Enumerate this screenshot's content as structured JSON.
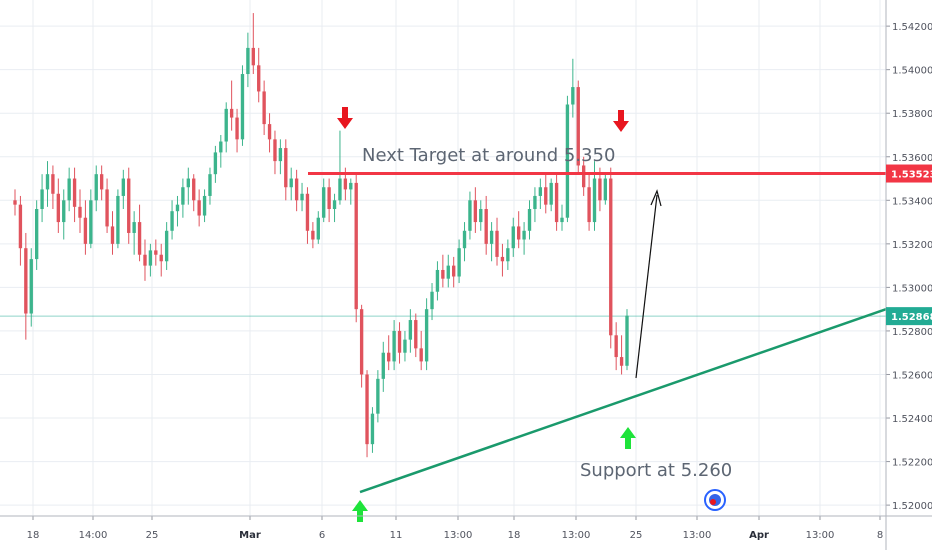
{
  "chart_data": {
    "type": "candlestick",
    "ylim": [
      1.5195,
      1.5432
    ],
    "y_ticks": [
      "1.54200",
      "1.54000",
      "1.53800",
      "1.53600",
      "1.53400",
      "1.53200",
      "1.53000",
      "1.52800",
      "1.52600",
      "1.52400",
      "1.52200",
      "1.52000"
    ],
    "x_ticks": [
      {
        "label": "18",
        "bold": false
      },
      {
        "label": "14:00",
        "bold": false
      },
      {
        "label": "25",
        "bold": false
      },
      {
        "label": "Mar",
        "bold": true
      },
      {
        "label": "6",
        "bold": false
      },
      {
        "label": "11",
        "bold": false
      },
      {
        "label": "13:00",
        "bold": false
      },
      {
        "label": "18",
        "bold": false
      },
      {
        "label": "13:00",
        "bold": false
      },
      {
        "label": "25",
        "bold": false
      },
      {
        "label": "13:00",
        "bold": false
      },
      {
        "label": "Apr",
        "bold": true
      },
      {
        "label": "13:00",
        "bold": false
      },
      {
        "label": "8",
        "bold": false
      }
    ],
    "candles": [
      [
        1.534,
        1.5345,
        1.5333,
        1.5338
      ],
      [
        1.5338,
        1.5342,
        1.531,
        1.5318
      ],
      [
        1.5318,
        1.5325,
        1.5276,
        1.5288
      ],
      [
        1.5288,
        1.5318,
        1.5282,
        1.5313
      ],
      [
        1.5313,
        1.534,
        1.5308,
        1.5336
      ],
      [
        1.5336,
        1.5352,
        1.533,
        1.5345
      ],
      [
        1.5345,
        1.5358,
        1.5337,
        1.5352
      ],
      [
        1.5352,
        1.5356,
        1.5336,
        1.5343
      ],
      [
        1.5343,
        1.535,
        1.5325,
        1.533
      ],
      [
        1.533,
        1.5345,
        1.5322,
        1.534
      ],
      [
        1.534,
        1.5355,
        1.5335,
        1.535
      ],
      [
        1.535,
        1.5355,
        1.533,
        1.5337
      ],
      [
        1.5337,
        1.5345,
        1.5325,
        1.5332
      ],
      [
        1.5332,
        1.534,
        1.5315,
        1.532
      ],
      [
        1.532,
        1.5345,
        1.5318,
        1.534
      ],
      [
        1.534,
        1.5356,
        1.5335,
        1.5352
      ],
      [
        1.5352,
        1.5356,
        1.534,
        1.5345
      ],
      [
        1.5345,
        1.535,
        1.5325,
        1.5328
      ],
      [
        1.5328,
        1.5335,
        1.5315,
        1.532
      ],
      [
        1.532,
        1.5345,
        1.5318,
        1.5342
      ],
      [
        1.5342,
        1.5354,
        1.5336,
        1.535
      ],
      [
        1.535,
        1.5355,
        1.532,
        1.5325
      ],
      [
        1.5325,
        1.5335,
        1.5315,
        1.533
      ],
      [
        1.533,
        1.5338,
        1.5312,
        1.5315
      ],
      [
        1.5315,
        1.5322,
        1.5303,
        1.531
      ],
      [
        1.531,
        1.532,
        1.5305,
        1.5317
      ],
      [
        1.5317,
        1.5322,
        1.531,
        1.5315
      ],
      [
        1.5315,
        1.532,
        1.5305,
        1.5312
      ],
      [
        1.5312,
        1.533,
        1.5308,
        1.5326
      ],
      [
        1.5326,
        1.534,
        1.5322,
        1.5335
      ],
      [
        1.5335,
        1.5342,
        1.5328,
        1.5338
      ],
      [
        1.5338,
        1.535,
        1.5332,
        1.5346
      ],
      [
        1.5346,
        1.5355,
        1.5338,
        1.535
      ],
      [
        1.535,
        1.5352,
        1.5335,
        1.534
      ],
      [
        1.534,
        1.5345,
        1.5328,
        1.5333
      ],
      [
        1.5333,
        1.5345,
        1.533,
        1.5342
      ],
      [
        1.5342,
        1.5355,
        1.5338,
        1.5352
      ],
      [
        1.5352,
        1.5365,
        1.5348,
        1.5362
      ],
      [
        1.5362,
        1.537,
        1.5355,
        1.5367
      ],
      [
        1.5367,
        1.5385,
        1.5362,
        1.5382
      ],
      [
        1.5382,
        1.5395,
        1.5372,
        1.5378
      ],
      [
        1.5378,
        1.5382,
        1.5362,
        1.5368
      ],
      [
        1.5368,
        1.5402,
        1.5365,
        1.5398
      ],
      [
        1.5398,
        1.5417,
        1.5392,
        1.541
      ],
      [
        1.541,
        1.5426,
        1.5398,
        1.5402
      ],
      [
        1.5402,
        1.541,
        1.5385,
        1.539
      ],
      [
        1.539,
        1.5395,
        1.537,
        1.5375
      ],
      [
        1.5375,
        1.538,
        1.5362,
        1.5368
      ],
      [
        1.5368,
        1.5372,
        1.5352,
        1.5358
      ],
      [
        1.5358,
        1.5368,
        1.5352,
        1.5364
      ],
      [
        1.5364,
        1.5368,
        1.534,
        1.5346
      ],
      [
        1.5346,
        1.5355,
        1.534,
        1.535
      ],
      [
        1.535,
        1.5354,
        1.5335,
        1.534
      ],
      [
        1.534,
        1.5348,
        1.5335,
        1.5343
      ],
      [
        1.5343,
        1.5346,
        1.532,
        1.5326
      ],
      [
        1.5326,
        1.533,
        1.5318,
        1.5322
      ],
      [
        1.5322,
        1.5335,
        1.532,
        1.5332
      ],
      [
        1.5332,
        1.535,
        1.533,
        1.5346
      ],
      [
        1.5346,
        1.535,
        1.533,
        1.5336
      ],
      [
        1.5336,
        1.5343,
        1.533,
        1.534
      ],
      [
        1.534,
        1.5372,
        1.5338,
        1.535
      ],
      [
        1.535,
        1.5355,
        1.534,
        1.5345
      ],
      [
        1.5345,
        1.535,
        1.5338,
        1.5348
      ],
      [
        1.5348,
        1.5352,
        1.5284,
        1.529
      ],
      [
        1.529,
        1.5292,
        1.5254,
        1.526
      ],
      [
        1.526,
        1.5262,
        1.5222,
        1.5228
      ],
      [
        1.5228,
        1.5245,
        1.5224,
        1.5242
      ],
      [
        1.5242,
        1.5262,
        1.5238,
        1.5258
      ],
      [
        1.5258,
        1.5275,
        1.5252,
        1.527
      ],
      [
        1.527,
        1.5278,
        1.5262,
        1.5266
      ],
      [
        1.5266,
        1.5285,
        1.5262,
        1.528
      ],
      [
        1.528,
        1.5284,
        1.5265,
        1.527
      ],
      [
        1.527,
        1.528,
        1.5266,
        1.5276
      ],
      [
        1.5276,
        1.529,
        1.527,
        1.5285
      ],
      [
        1.5285,
        1.5288,
        1.5268,
        1.5272
      ],
      [
        1.5272,
        1.528,
        1.5262,
        1.5266
      ],
      [
        1.5266,
        1.5295,
        1.5262,
        1.529
      ],
      [
        1.529,
        1.5302,
        1.5285,
        1.5298
      ],
      [
        1.5298,
        1.5312,
        1.5294,
        1.5308
      ],
      [
        1.5308,
        1.5315,
        1.53,
        1.5304
      ],
      [
        1.5304,
        1.5315,
        1.53,
        1.531
      ],
      [
        1.531,
        1.5314,
        1.53,
        1.5305
      ],
      [
        1.5305,
        1.5322,
        1.5302,
        1.5318
      ],
      [
        1.5318,
        1.533,
        1.5312,
        1.5326
      ],
      [
        1.5326,
        1.5344,
        1.5322,
        1.534
      ],
      [
        1.534,
        1.5346,
        1.5325,
        1.533
      ],
      [
        1.533,
        1.534,
        1.5326,
        1.5336
      ],
      [
        1.5336,
        1.5342,
        1.5315,
        1.532
      ],
      [
        1.532,
        1.533,
        1.5312,
        1.5326
      ],
      [
        1.5326,
        1.5332,
        1.531,
        1.5314
      ],
      [
        1.5314,
        1.532,
        1.5305,
        1.5312
      ],
      [
        1.5312,
        1.5322,
        1.5308,
        1.5318
      ],
      [
        1.5318,
        1.5332,
        1.5314,
        1.5328
      ],
      [
        1.5328,
        1.5335,
        1.5318,
        1.5322
      ],
      [
        1.5322,
        1.533,
        1.5315,
        1.5326
      ],
      [
        1.5326,
        1.534,
        1.5322,
        1.5336
      ],
      [
        1.5336,
        1.5346,
        1.533,
        1.5342
      ],
      [
        1.5342,
        1.535,
        1.5336,
        1.5346
      ],
      [
        1.5346,
        1.5352,
        1.5334,
        1.5338
      ],
      [
        1.5338,
        1.535,
        1.5335,
        1.5348
      ],
      [
        1.5348,
        1.5352,
        1.5326,
        1.533
      ],
      [
        1.533,
        1.5338,
        1.5326,
        1.5332
      ],
      [
        1.5332,
        1.5388,
        1.533,
        1.5384
      ],
      [
        1.5384,
        1.5405,
        1.5378,
        1.5392
      ],
      [
        1.5392,
        1.5395,
        1.5352,
        1.5356
      ],
      [
        1.5356,
        1.536,
        1.5342,
        1.5346
      ],
      [
        1.5346,
        1.5352,
        1.5326,
        1.533
      ],
      [
        1.533,
        1.5358,
        1.5326,
        1.535
      ],
      [
        1.535,
        1.5355,
        1.5335,
        1.534
      ],
      [
        1.534,
        1.5352,
        1.5338,
        1.535
      ],
      [
        1.535,
        1.5355,
        1.5272,
        1.5278
      ],
      [
        1.5278,
        1.5284,
        1.5262,
        1.5268
      ],
      [
        1.5268,
        1.5278,
        1.526,
        1.5264
      ],
      [
        1.5264,
        1.529,
        1.5262,
        1.5287
      ]
    ],
    "horizontal_lines": [
      {
        "value": 1.53523,
        "label": "1.53523",
        "color": "#f23645"
      },
      {
        "value": 1.52868,
        "label": "1.52868",
        "color": "#22ab94"
      }
    ],
    "trendline": {
      "from": [
        1.5206
      ],
      "to": [
        1.529
      ],
      "color": "#1a9a6c"
    },
    "annotations": [
      {
        "text": "Next Target at around 5.350"
      },
      {
        "text": "Support at 5.260"
      }
    ],
    "up_color": "#3cb48c",
    "down_color": "#e0535d"
  }
}
